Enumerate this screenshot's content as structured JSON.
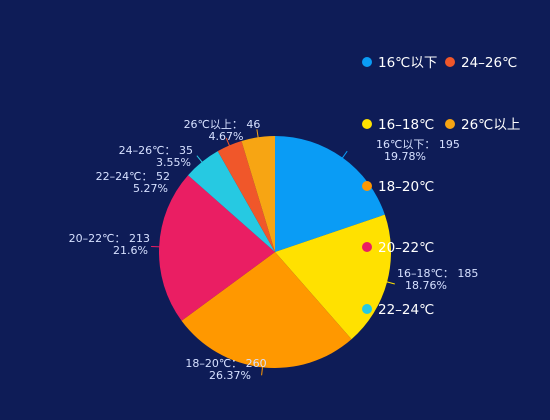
{
  "chart_data": {
    "type": "pie",
    "title": "",
    "slices": [
      {
        "name": "16℃以下",
        "value": 195,
        "percent": "19.78%",
        "color": "#0a9cf5"
      },
      {
        "name": "16-18℃",
        "value": 185,
        "percent": "18.76%",
        "color": "#ffe100"
      },
      {
        "name": "18-20℃",
        "value": 260,
        "percent": "26.37%",
        "color": "#ff9800"
      },
      {
        "name": "20-22℃",
        "value": 213,
        "percent": "21.6%",
        "color": "#ea1e63"
      },
      {
        "name": "22-24℃",
        "value": 52,
        "percent": "5.27%",
        "color": "#26c9e2"
      },
      {
        "name": "24-26℃",
        "value": 35,
        "percent": "3.55%",
        "color": "#f0572a"
      },
      {
        "name": "26℃以上",
        "value": 46,
        "percent": "4.67%",
        "color": "#f7a513"
      }
    ],
    "labels": [
      {
        "line1": "16℃以下： 195",
        "line2": "19.78%"
      },
      {
        "line1": "16–18℃： 185",
        "line2": "18.76%"
      },
      {
        "line1": "18–20℃： 260",
        "line2": "26.37%"
      },
      {
        "line1": "20–22℃： 213",
        "line2": "21.6%"
      },
      {
        "line1": "22–24℃： 52",
        "line2": "5.27%"
      },
      {
        "line1": "24–26℃： 35",
        "line2": "3.55%"
      },
      {
        "line1": "26℃以上： 46",
        "line2": "4.67%"
      }
    ],
    "legend": {
      "position": "right",
      "entries": [
        "16℃以下",
        "24–26℃",
        "16–18℃",
        "26℃以上",
        "18–20℃",
        "20–22℃",
        "22–24℃"
      ]
    },
    "background": "#0e1c57"
  }
}
